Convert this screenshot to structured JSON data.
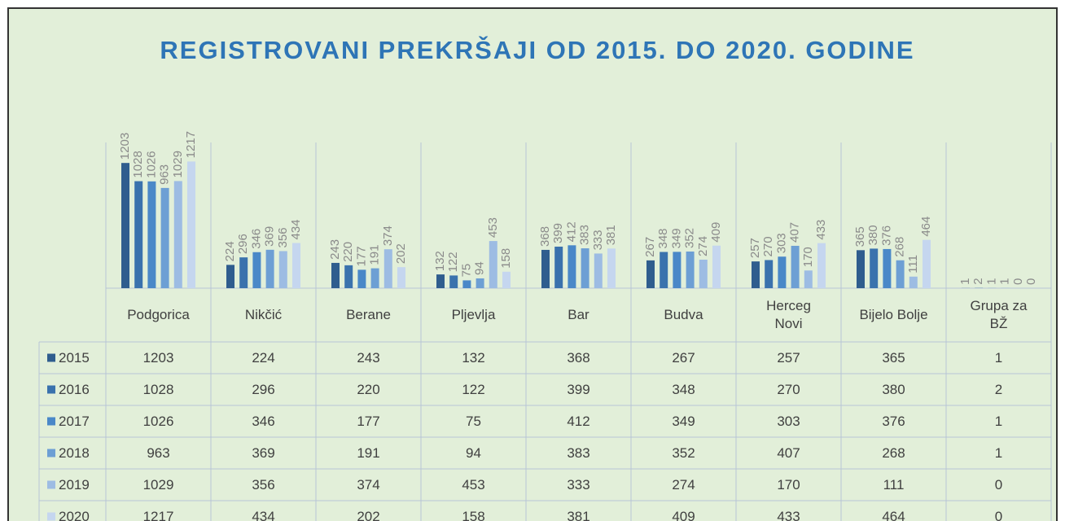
{
  "chart_data": {
    "type": "bar",
    "title": "REGISTROVANI PREKRŠAJI OD 2015. DO 2020. GODINE",
    "categories": [
      "Podgorica",
      "Nikčić",
      "Berane",
      "Pljevlja",
      "Bar",
      "Budva",
      "Herceg Novi",
      "Bijelo Bolje",
      "Grupa za BŽ"
    ],
    "series": [
      {
        "name": "2015",
        "color": "#2f5d8e",
        "values": [
          1203,
          224,
          243,
          132,
          368,
          267,
          257,
          365,
          1
        ]
      },
      {
        "name": "2016",
        "color": "#3a72ad",
        "values": [
          1028,
          296,
          220,
          122,
          399,
          348,
          270,
          380,
          2
        ]
      },
      {
        "name": "2017",
        "color": "#4a88c8",
        "values": [
          1026,
          346,
          177,
          75,
          412,
          349,
          303,
          376,
          1
        ]
      },
      {
        "name": "2018",
        "color": "#6d9fd4",
        "values": [
          963,
          369,
          191,
          94,
          383,
          352,
          407,
          268,
          1
        ]
      },
      {
        "name": "2019",
        "color": "#9dbce3",
        "values": [
          1029,
          356,
          374,
          453,
          333,
          274,
          170,
          111,
          0
        ]
      },
      {
        "name": "2020",
        "color": "#c5d6ef",
        "values": [
          1217,
          434,
          202,
          158,
          381,
          409,
          433,
          464,
          0
        ]
      }
    ],
    "ylim": [
      0,
      1400
    ],
    "data_labels": true,
    "data_table": true
  }
}
